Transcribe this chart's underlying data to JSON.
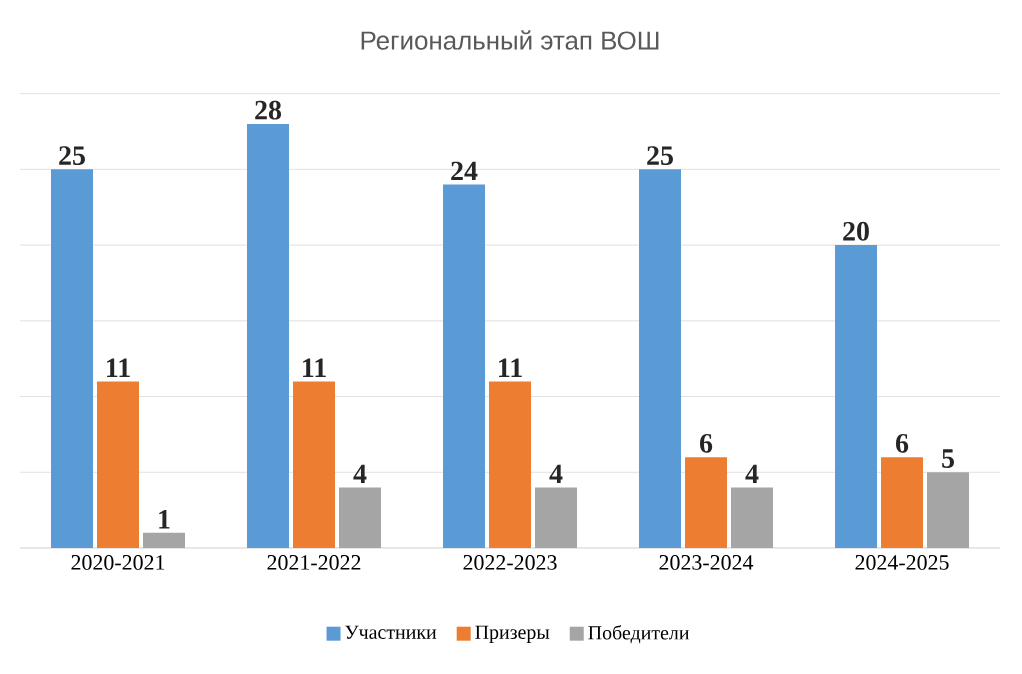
{
  "chart_data": {
    "type": "bar",
    "title": "Региональный этап ВОШ",
    "categories": [
      "2020-2021",
      "2021-2022",
      "2022-2023",
      "2023-2024",
      "2024-2025"
    ],
    "series": [
      {
        "name": "Участники",
        "color": "#5b9bd5",
        "values": [
          25,
          28,
          24,
          25,
          20
        ]
      },
      {
        "name": "Призеры",
        "color": "#ed7d31",
        "values": [
          11,
          11,
          11,
          6,
          6
        ]
      },
      {
        "name": "Победители",
        "color": "#a5a5a5",
        "values": [
          1,
          4,
          4,
          4,
          5
        ]
      }
    ],
    "tick_labels": "x",
    "grid": "y",
    "legend": "bottom",
    "data_labels": true
  }
}
